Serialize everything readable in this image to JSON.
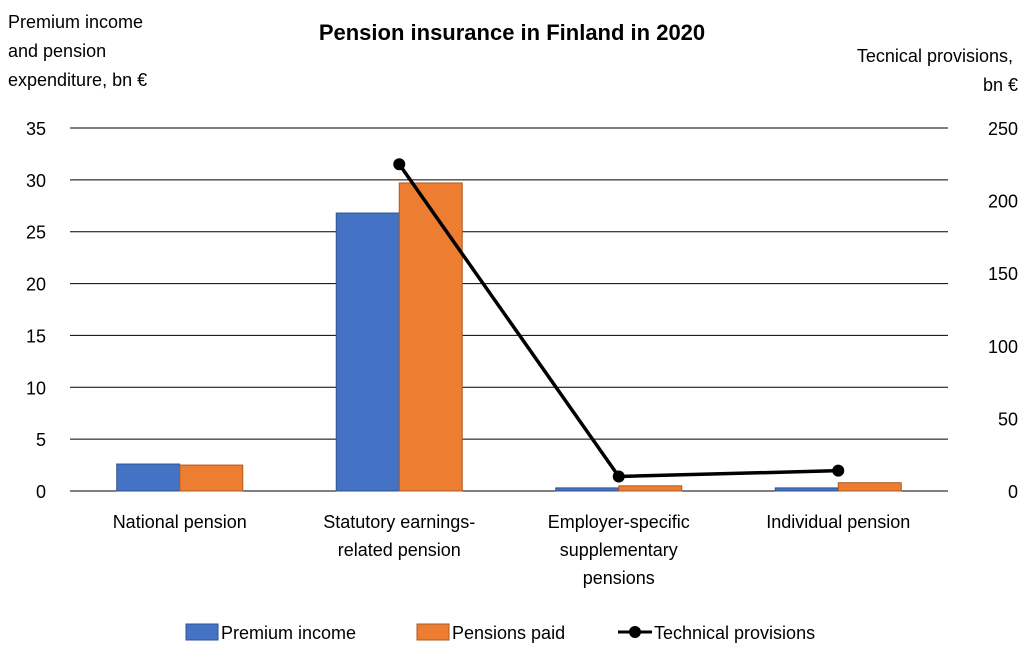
{
  "chart_data": {
    "type": "bar",
    "title": "Pension insurance in Finland in 2020",
    "y_left_label_lines": [
      "Premium income",
      "and pension",
      "expenditure, bn €"
    ],
    "y_right_label_lines": [
      "Tecnical provisions,",
      "bn €"
    ],
    "y_left_ticks": [
      "0",
      "5",
      "10",
      "15",
      "20",
      "25",
      "30",
      "35"
    ],
    "y_right_ticks": [
      "0",
      "50",
      "100",
      "150",
      "200",
      "250"
    ],
    "ylim_left": [
      0,
      35
    ],
    "ylim_right": [
      0,
      250
    ],
    "grid": true,
    "legend_position": "bottom",
    "categories": [
      [
        "National pension"
      ],
      [
        "Statutory earnings-",
        "related pension"
      ],
      [
        "Employer-specific",
        "supplementary",
        "pensions"
      ],
      [
        "Individual pension"
      ]
    ],
    "series": [
      {
        "name": "Premium income",
        "type": "bar",
        "axis": "left",
        "color": "#4472C4",
        "values": [
          2.6,
          26.8,
          0.3,
          0.3
        ]
      },
      {
        "name": "Pensions paid",
        "type": "bar",
        "axis": "left",
        "color": "#ED7D31",
        "values": [
          2.5,
          29.7,
          0.5,
          0.8
        ]
      },
      {
        "name": "Technical provisions",
        "type": "line",
        "axis": "right",
        "color": "#000000",
        "values": [
          null,
          225,
          10,
          14
        ]
      }
    ]
  }
}
